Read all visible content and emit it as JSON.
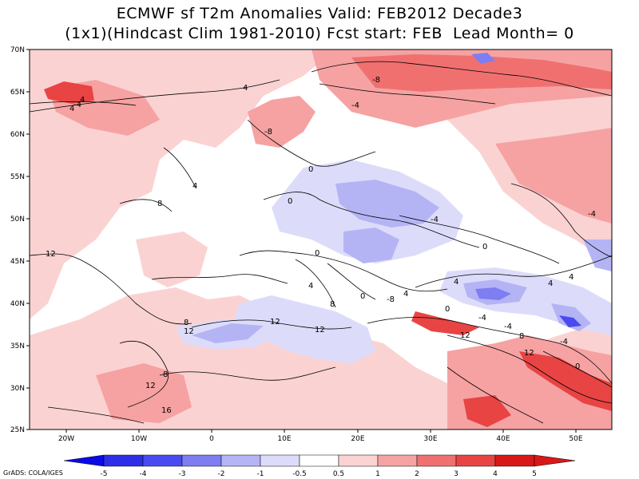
{
  "title": {
    "line1": "ECMWF sf T2m Anomalies Valid: FEB2012 Decade3",
    "line2": "(1x1)(Hindcast Clim 1981-2010) Fcst start: FEB  Lead Month= 0"
  },
  "map": {
    "lat_labels": [
      "70N",
      "65N",
      "60N",
      "55N",
      "50N",
      "45N",
      "40N",
      "35N",
      "30N",
      "25N"
    ],
    "lon_labels": [
      "20W",
      "10W",
      "0",
      "10E",
      "20E",
      "30E",
      "40E",
      "50E"
    ],
    "contour_labels": [
      "-8",
      "-4",
      "-8",
      "-4",
      "0",
      "0",
      "4",
      "4",
      "8",
      "4",
      "4",
      "-4",
      "0",
      "12",
      "12",
      "8",
      "8",
      "12",
      "12",
      "16",
      "4",
      "8",
      "0",
      "-8",
      "4",
      "0",
      "-4",
      "8",
      "-4",
      "4",
      "12",
      "0",
      "-4",
      "-4",
      "12",
      "12",
      "0",
      "4",
      "4"
    ]
  },
  "colorbar": {
    "labels": [
      "-5",
      "-4",
      "-3",
      "-2",
      "-1",
      "-0.5",
      "0.5",
      "1",
      "2",
      "3",
      "4",
      "5"
    ],
    "colors": [
      "#0a0ae6",
      "#2e2ee8",
      "#4a4af0",
      "#7e7ef2",
      "#b4b4f5",
      "#dcdcfa",
      "#ffffff",
      "#fbd2d2",
      "#f6a2a2",
      "#f07070",
      "#e84444",
      "#d81818"
    ]
  },
  "footer": "GrADS: COLA/IGES"
}
